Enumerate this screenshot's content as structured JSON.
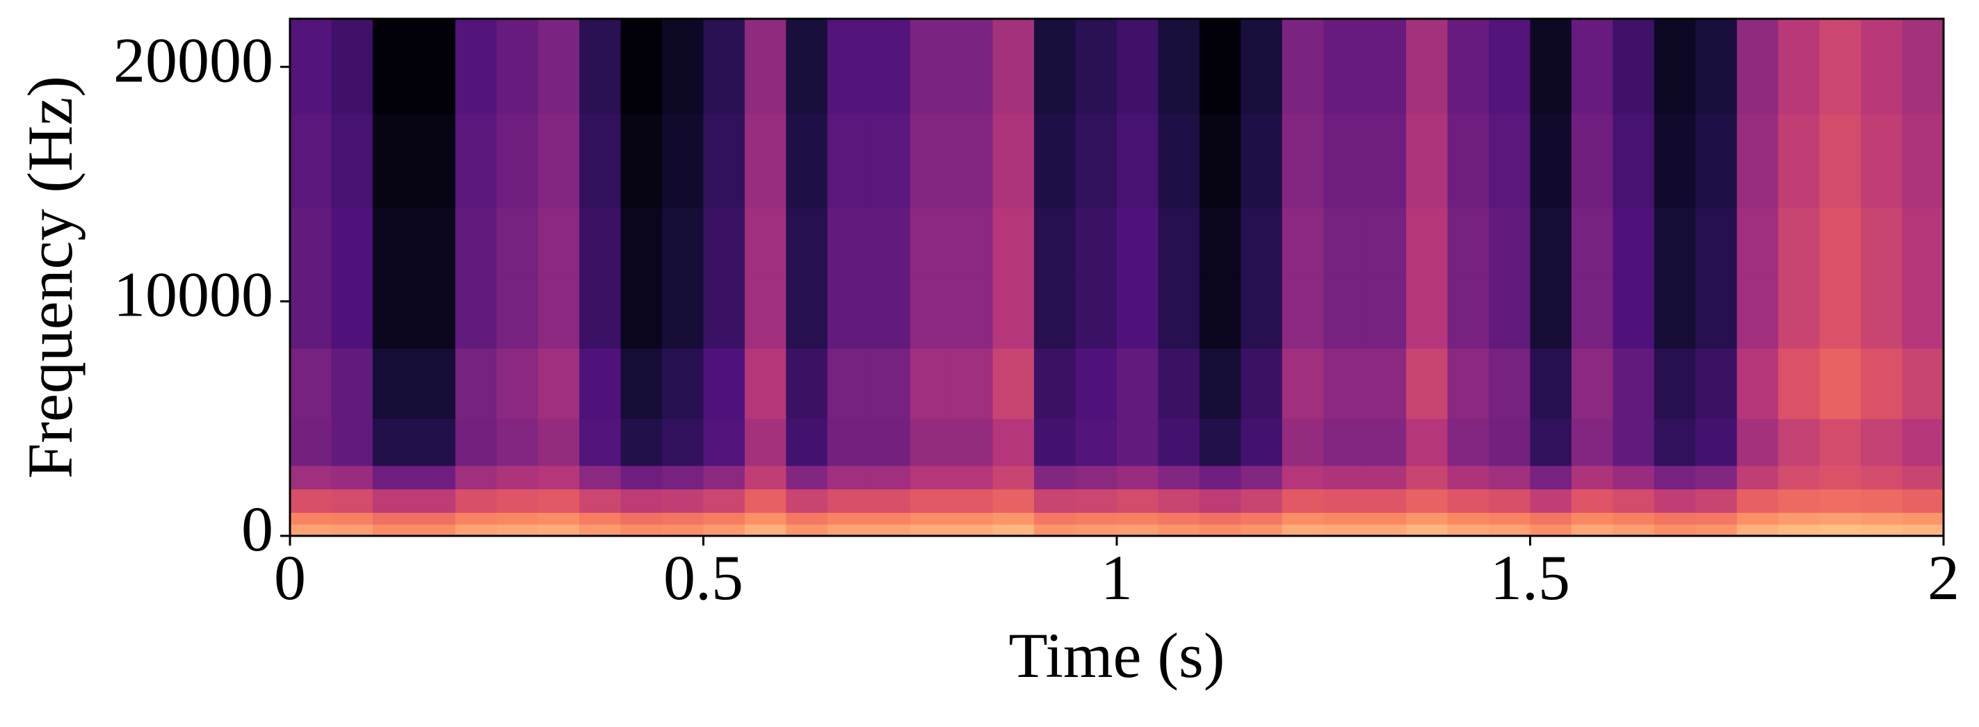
{
  "chart_data": {
    "type": "spectrogram",
    "x_label": "Time (s)",
    "y_label": "Frequency (Hz)",
    "xlim": [
      0,
      2
    ],
    "xticks": [
      0,
      0.5,
      1,
      1.5,
      2
    ],
    "ylim": [
      0,
      22050
    ],
    "yticks": [
      0,
      10000,
      20000
    ],
    "clim": [
      0,
      1
    ],
    "colormap": [
      "#000004",
      "#1c1044",
      "#4f127b",
      "#812581",
      "#b5367a",
      "#e55964",
      "#fb8761",
      "#fec287",
      "#fcfdbf"
    ],
    "x_bins": [
      0,
      0.05,
      0.1,
      0.15,
      0.2,
      0.25,
      0.3,
      0.35,
      0.4,
      0.45,
      0.5,
      0.55,
      0.6,
      0.65,
      0.7,
      0.75,
      0.8,
      0.85,
      0.9,
      0.95,
      1,
      1.05,
      1.1,
      1.15,
      1.2,
      1.25,
      1.3,
      1.35,
      1.4,
      1.45,
      1.5,
      1.55,
      1.6,
      1.65,
      1.7,
      1.75,
      1.8,
      1.85,
      1.9,
      1.95,
      2
    ],
    "y_bins": [
      0,
      500,
      1000,
      2000,
      3000,
      5000,
      8000,
      11000,
      14000,
      18000,
      22050
    ],
    "values": [
      [
        0.81,
        0.8,
        0.76,
        0.76,
        0.81,
        0.82,
        0.83,
        0.79,
        0.76,
        0.77,
        0.79,
        0.84,
        0.78,
        0.81,
        0.81,
        0.83,
        0.83,
        0.85,
        0.78,
        0.79,
        0.8,
        0.78,
        0.76,
        0.78,
        0.83,
        0.82,
        0.82,
        0.85,
        0.82,
        0.81,
        0.77,
        0.82,
        0.8,
        0.77,
        0.78,
        0.84,
        0.86,
        0.87,
        0.86,
        0.85
      ],
      [
        0.74,
        0.73,
        0.69,
        0.69,
        0.74,
        0.75,
        0.76,
        0.72,
        0.69,
        0.7,
        0.72,
        0.77,
        0.71,
        0.74,
        0.74,
        0.76,
        0.76,
        0.78,
        0.71,
        0.72,
        0.73,
        0.71,
        0.69,
        0.71,
        0.76,
        0.75,
        0.75,
        0.78,
        0.75,
        0.74,
        0.7,
        0.75,
        0.73,
        0.7,
        0.71,
        0.77,
        0.79,
        0.8,
        0.79,
        0.78
      ],
      [
        0.59,
        0.58,
        0.52,
        0.52,
        0.59,
        0.61,
        0.62,
        0.56,
        0.52,
        0.53,
        0.56,
        0.64,
        0.55,
        0.59,
        0.59,
        0.62,
        0.62,
        0.65,
        0.55,
        0.56,
        0.58,
        0.55,
        0.52,
        0.55,
        0.62,
        0.61,
        0.61,
        0.65,
        0.61,
        0.59,
        0.53,
        0.61,
        0.58,
        0.53,
        0.55,
        0.64,
        0.67,
        0.68,
        0.67,
        0.65
      ],
      [
        0.45,
        0.43,
        0.33,
        0.33,
        0.45,
        0.48,
        0.5,
        0.4,
        0.33,
        0.35,
        0.4,
        0.53,
        0.38,
        0.45,
        0.45,
        0.5,
        0.5,
        0.55,
        0.38,
        0.4,
        0.43,
        0.38,
        0.33,
        0.38,
        0.5,
        0.48,
        0.48,
        0.55,
        0.48,
        0.45,
        0.35,
        0.48,
        0.43,
        0.35,
        0.38,
        0.53,
        0.58,
        0.6,
        0.58,
        0.55
      ],
      [
        0.34,
        0.3,
        0.14,
        0.14,
        0.34,
        0.38,
        0.42,
        0.26,
        0.14,
        0.18,
        0.26,
        0.46,
        0.22,
        0.34,
        0.34,
        0.42,
        0.42,
        0.5,
        0.22,
        0.26,
        0.3,
        0.22,
        0.14,
        0.22,
        0.42,
        0.38,
        0.38,
        0.5,
        0.38,
        0.34,
        0.18,
        0.38,
        0.3,
        0.18,
        0.22,
        0.46,
        0.54,
        0.58,
        0.54,
        0.5
      ],
      [
        0.35,
        0.3,
        0.1,
        0.1,
        0.35,
        0.4,
        0.45,
        0.25,
        0.1,
        0.15,
        0.25,
        0.5,
        0.2,
        0.35,
        0.35,
        0.45,
        0.45,
        0.55,
        0.2,
        0.25,
        0.3,
        0.2,
        0.1,
        0.2,
        0.45,
        0.4,
        0.4,
        0.55,
        0.4,
        0.35,
        0.15,
        0.4,
        0.3,
        0.15,
        0.2,
        0.5,
        0.6,
        0.65,
        0.6,
        0.55
      ],
      [
        0.3,
        0.25,
        0.05,
        0.05,
        0.3,
        0.35,
        0.4,
        0.2,
        0.05,
        0.1,
        0.2,
        0.45,
        0.15,
        0.3,
        0.3,
        0.4,
        0.4,
        0.5,
        0.15,
        0.2,
        0.25,
        0.15,
        0.05,
        0.15,
        0.4,
        0.35,
        0.35,
        0.5,
        0.35,
        0.3,
        0.1,
        0.35,
        0.25,
        0.1,
        0.15,
        0.45,
        0.55,
        0.6,
        0.55,
        0.5
      ],
      [
        0.3,
        0.25,
        0.05,
        0.05,
        0.3,
        0.35,
        0.4,
        0.2,
        0.05,
        0.1,
        0.2,
        0.45,
        0.15,
        0.3,
        0.3,
        0.4,
        0.4,
        0.5,
        0.15,
        0.2,
        0.25,
        0.15,
        0.05,
        0.15,
        0.4,
        0.35,
        0.35,
        0.5,
        0.35,
        0.3,
        0.1,
        0.35,
        0.25,
        0.1,
        0.15,
        0.45,
        0.55,
        0.6,
        0.55,
        0.5
      ],
      [
        0.28,
        0.23,
        0.03,
        0.03,
        0.28,
        0.33,
        0.38,
        0.18,
        0.03,
        0.08,
        0.18,
        0.43,
        0.13,
        0.28,
        0.28,
        0.38,
        0.38,
        0.48,
        0.13,
        0.18,
        0.23,
        0.13,
        0.03,
        0.13,
        0.38,
        0.33,
        0.33,
        0.48,
        0.33,
        0.28,
        0.08,
        0.33,
        0.23,
        0.08,
        0.13,
        0.43,
        0.53,
        0.58,
        0.53,
        0.48
      ],
      [
        0.26,
        0.21,
        0.01,
        0.01,
        0.26,
        0.31,
        0.36,
        0.16,
        0.01,
        0.06,
        0.16,
        0.41,
        0.11,
        0.26,
        0.26,
        0.36,
        0.36,
        0.46,
        0.11,
        0.16,
        0.21,
        0.11,
        0.01,
        0.11,
        0.36,
        0.31,
        0.31,
        0.46,
        0.31,
        0.26,
        0.06,
        0.31,
        0.21,
        0.06,
        0.11,
        0.41,
        0.51,
        0.56,
        0.51,
        0.46
      ]
    ]
  }
}
